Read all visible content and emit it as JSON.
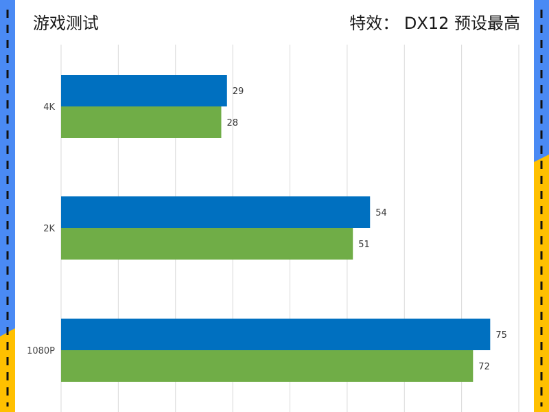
{
  "header": {
    "title_left": "游戏测试",
    "title_right": "特效： DX12 预设最高"
  },
  "colors": {
    "series_blue": "#0070c0",
    "series_green": "#70ad47",
    "frame_blue": "#4a8af4",
    "frame_yellow": "#ffc000",
    "dash": "#111111",
    "grid": "#d9d9d9"
  },
  "chart_data": {
    "type": "bar",
    "orientation": "horizontal",
    "categories": [
      "4K",
      "2K",
      "1080P"
    ],
    "series": [
      {
        "values": [
          29,
          54,
          75
        ],
        "color": "#0070c0"
      },
      {
        "values": [
          28,
          51,
          72
        ],
        "color": "#70ad47"
      }
    ],
    "xlim": [
      0,
      80
    ],
    "grid": true,
    "data_labels": true
  }
}
